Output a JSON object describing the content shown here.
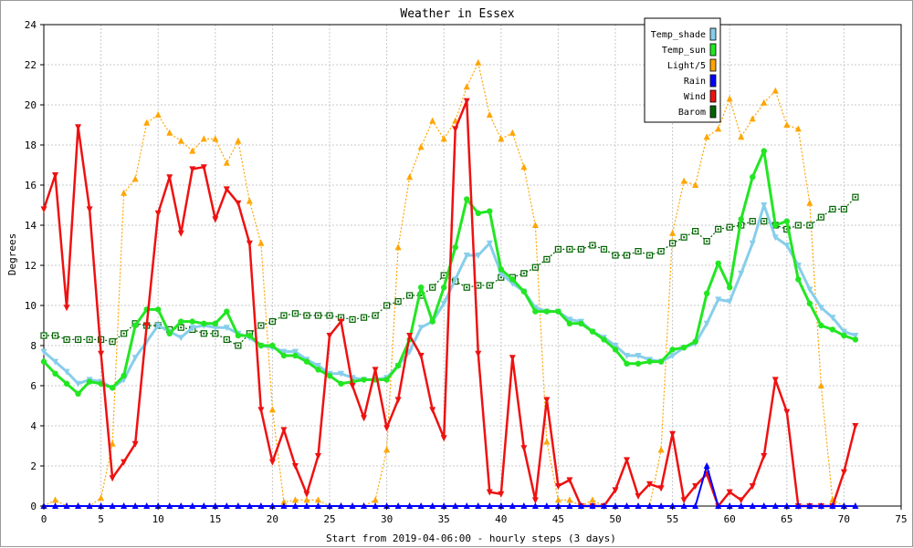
{
  "chart_data": {
    "type": "line",
    "title": "Weather in Essex",
    "xlabel": "Start from 2019-04-06:00 - hourly steps (3 days)",
    "ylabel": "Degrees",
    "xlim": [
      0,
      75
    ],
    "ylim": [
      0,
      24
    ],
    "xticks": [
      0,
      5,
      10,
      15,
      20,
      25,
      30,
      35,
      40,
      45,
      50,
      55,
      60,
      65,
      70,
      75
    ],
    "yticks": [
      0,
      2,
      4,
      6,
      8,
      10,
      12,
      14,
      16,
      18,
      20,
      22,
      24
    ],
    "grid": true,
    "legend_position": "top-right",
    "series": [
      {
        "name": "Temp_shade",
        "color": "#87ceeb",
        "marker": "triangle-down",
        "values": [
          7.7,
          7.2,
          6.7,
          6.1,
          6.3,
          6.2,
          5.9,
          6.3,
          7.4,
          8.2,
          9.0,
          8.7,
          8.4,
          8.9,
          9.0,
          8.9,
          8.9,
          8.6,
          8.4,
          8.0,
          7.9,
          7.7,
          7.7,
          7.3,
          7.0,
          6.6,
          6.6,
          6.4,
          6.3,
          6.3,
          6.4,
          7.0,
          7.7,
          8.9,
          9.2,
          10.1,
          11.3,
          12.5,
          12.5,
          13.1,
          11.6,
          11.1,
          10.7,
          9.9,
          9.7,
          9.7,
          9.3,
          9.2,
          8.7,
          8.4,
          8.0,
          7.5,
          7.5,
          7.3,
          7.2,
          7.5,
          7.9,
          8.1,
          9.1,
          10.3,
          10.2,
          11.6,
          13.1,
          15.0,
          13.4,
          13.0,
          12.0,
          10.8,
          9.9,
          9.4,
          8.7,
          8.5
        ]
      },
      {
        "name": "Temp_sun",
        "color": "#22e622",
        "marker": "circle",
        "values": [
          7.2,
          6.6,
          6.1,
          5.6,
          6.2,
          6.1,
          5.9,
          6.5,
          9.0,
          9.8,
          9.8,
          8.6,
          9.2,
          9.2,
          9.1,
          9.1,
          9.7,
          8.5,
          8.5,
          8.0,
          8.0,
          7.5,
          7.5,
          7.2,
          6.8,
          6.5,
          6.1,
          6.2,
          6.3,
          6.3,
          6.3,
          7.0,
          8.3,
          10.9,
          9.2,
          10.9,
          12.9,
          15.3,
          14.6,
          14.7,
          11.8,
          11.3,
          10.7,
          9.7,
          9.7,
          9.7,
          9.1,
          9.1,
          8.7,
          8.3,
          7.8,
          7.1,
          7.1,
          7.2,
          7.2,
          7.8,
          7.9,
          8.2,
          10.6,
          12.1,
          10.9,
          14.3,
          16.4,
          17.7,
          14.0,
          14.2,
          11.3,
          10.1,
          9.0,
          8.8,
          8.5,
          8.3
        ]
      },
      {
        "name": "Light/5",
        "color": "#ffa500",
        "marker": "triangle-up",
        "values": [
          0,
          0.3,
          0,
          0,
          0,
          0.4,
          3.1,
          15.6,
          16.3,
          19.1,
          19.5,
          18.6,
          18.2,
          17.7,
          18.3,
          18.3,
          17.1,
          18.2,
          15.2,
          13.1,
          4.8,
          0.2,
          0.3,
          0.3,
          0.3,
          0,
          0,
          0,
          0,
          0.3,
          2.8,
          12.9,
          16.4,
          17.9,
          19.2,
          18.3,
          19.2,
          20.9,
          22.1,
          19.5,
          18.3,
          18.6,
          16.9,
          14.0,
          3.2,
          0.3,
          0.3,
          0,
          0.3,
          0,
          0,
          0,
          0,
          0,
          2.8,
          13.6,
          16.2,
          16.0,
          18.4,
          18.8,
          20.3,
          18.4,
          19.3,
          20.1,
          20.7,
          19.0,
          18.8,
          15.1,
          6.0,
          0.3,
          0,
          0
        ]
      },
      {
        "name": "Rain",
        "color": "#0000ff",
        "marker": "triangle-up",
        "values": [
          0,
          0,
          0,
          0,
          0,
          0,
          0,
          0,
          0,
          0,
          0,
          0,
          0,
          0,
          0,
          0,
          0,
          0,
          0,
          0,
          0,
          0,
          0,
          0,
          0,
          0,
          0,
          0,
          0,
          0,
          0,
          0,
          0,
          0,
          0,
          0,
          0,
          0,
          0,
          0,
          0,
          0,
          0,
          0,
          0,
          0,
          0,
          0,
          0,
          0,
          0,
          0,
          0,
          0,
          0,
          0,
          0,
          0,
          2.0,
          0,
          0,
          0,
          0,
          0,
          0,
          0,
          0,
          0,
          0,
          0,
          0,
          0
        ]
      },
      {
        "name": "Wind",
        "color": "#ee1111",
        "marker": "triangle-down",
        "values": [
          14.8,
          16.5,
          9.9,
          18.9,
          14.8,
          7.6,
          1.4,
          2.2,
          3.1,
          9.0,
          14.6,
          16.4,
          13.6,
          16.8,
          16.9,
          14.3,
          15.8,
          15.1,
          13.1,
          4.8,
          2.2,
          3.8,
          2.0,
          0.6,
          2.5,
          8.5,
          9.2,
          6.0,
          4.4,
          6.8,
          3.9,
          5.3,
          8.5,
          7.5,
          4.8,
          3.4,
          18.8,
          20.2,
          7.6,
          0.7,
          0.6,
          7.4,
          2.9,
          0.3,
          5.3,
          1.0,
          1.3,
          0,
          0,
          0,
          0.8,
          2.3,
          0.5,
          1.1,
          0.9,
          3.6,
          0.3,
          1.0,
          1.6,
          0,
          0.7,
          0.3,
          1.0,
          2.5,
          6.3,
          4.7,
          0,
          0,
          0,
          0,
          1.7,
          4.0
        ]
      },
      {
        "name": "Barom",
        "color": "#006400",
        "marker": "square",
        "values": [
          8.5,
          8.5,
          8.3,
          8.3,
          8.3,
          8.3,
          8.2,
          8.6,
          9.1,
          9.0,
          9.0,
          8.8,
          8.9,
          8.8,
          8.6,
          8.6,
          8.3,
          8.0,
          8.6,
          9.0,
          9.2,
          9.5,
          9.6,
          9.5,
          9.5,
          9.5,
          9.4,
          9.3,
          9.4,
          9.5,
          10.0,
          10.2,
          10.5,
          10.5,
          10.9,
          11.5,
          11.2,
          10.9,
          11.0,
          11.0,
          11.4,
          11.4,
          11.6,
          11.9,
          12.3,
          12.8,
          12.8,
          12.8,
          13.0,
          12.8,
          12.5,
          12.5,
          12.7,
          12.5,
          12.7,
          13.1,
          13.4,
          13.7,
          13.2,
          13.8,
          13.9,
          14.0,
          14.2,
          14.2,
          14.0,
          13.8,
          14.0,
          14.0,
          14.4,
          14.8,
          14.8,
          15.4
        ]
      }
    ]
  }
}
